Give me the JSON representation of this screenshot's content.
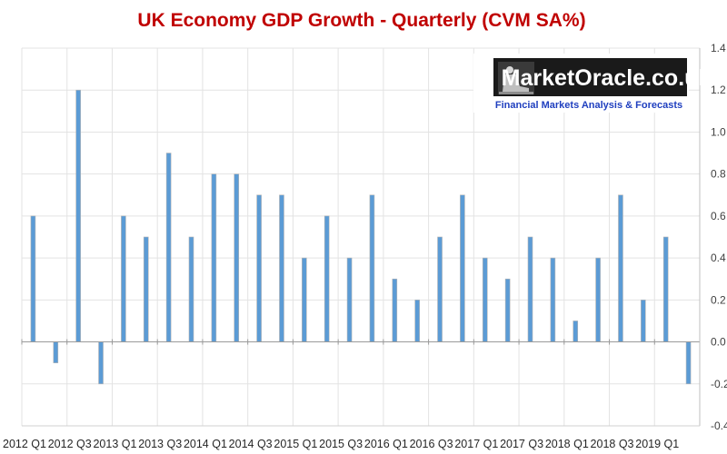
{
  "chart_data": {
    "type": "bar",
    "title": "UK Economy GDP Growth - Quarterly (CVM SA%)",
    "xlabel": "",
    "ylabel": "",
    "ylim": [
      -0.4,
      1.4
    ],
    "yticks": [
      "-0.4",
      "-0.2",
      "0.0",
      "0.2",
      "0.4",
      "0.6",
      "0.8",
      "1.0",
      "1.2",
      "1.4"
    ],
    "grid": true,
    "legend": "none",
    "bar_color": "#5b9bd5",
    "categories": [
      "2012 Q1",
      "2012 Q2",
      "2012 Q3",
      "2012 Q4",
      "2013 Q1",
      "2013 Q2",
      "2013 Q3",
      "2013 Q4",
      "2014 Q1",
      "2014 Q2",
      "2014 Q3",
      "2014 Q4",
      "2015 Q1",
      "2015 Q2",
      "2015 Q3",
      "2015 Q4",
      "2016 Q1",
      "2016 Q2",
      "2016 Q3",
      "2016 Q4",
      "2017 Q1",
      "2017 Q2",
      "2017 Q3",
      "2017 Q4",
      "2018 Q1",
      "2018 Q2",
      "2018 Q3",
      "2018 Q4",
      "2019 Q1",
      "2019 Q2"
    ],
    "values": [
      0.6,
      -0.1,
      1.2,
      -0.2,
      0.6,
      0.5,
      0.9,
      0.5,
      0.8,
      0.8,
      0.7,
      0.7,
      0.4,
      0.6,
      0.4,
      0.7,
      0.3,
      0.2,
      0.5,
      0.7,
      0.4,
      0.3,
      0.5,
      0.4,
      0.1,
      0.4,
      0.7,
      0.2,
      0.5,
      -0.2
    ],
    "xtick_labels": [
      "2012 Q1",
      "2012 Q3",
      "2013 Q1",
      "2013 Q3",
      "2014 Q1",
      "2014 Q3",
      "2015 Q1",
      "2015 Q3",
      "2016 Q1",
      "2016 Q3",
      "2017 Q1",
      "2017 Q3",
      "2018 Q1",
      "2018 Q3",
      "2019 Q1"
    ]
  },
  "logo": {
    "name": "MarketOracle.co.uk",
    "tagline": "Financial Markets Analysis & Forecasts"
  }
}
